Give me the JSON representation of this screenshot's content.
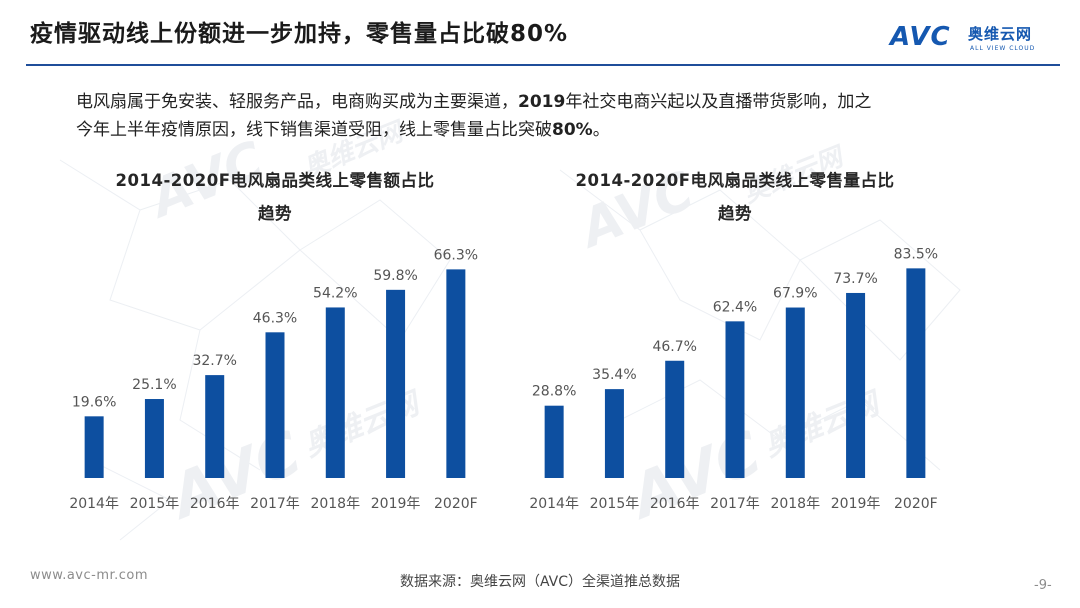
{
  "header": {
    "title": "疫情驱动线上份额进一步加持，零售量占比破80%",
    "logo": {
      "mark": "AVC",
      "name_cn": "奥维云网",
      "name_en": "ALL VIEW CLOUD"
    }
  },
  "summary": {
    "line1_a": "电风扇属于免安装、轻服务产品，电商购买成为主要渠道，",
    "line1_bold": "2019",
    "line1_b": "年社交电商兴起以及直播带货影响，加之",
    "line2_a": "今年上半年疫情原因，线下销售渠道受阻，线上零售量占比突破",
    "line2_bold": "80%",
    "line2_b": "。"
  },
  "watermark": {
    "mark": "AVC",
    "name_cn": "奥维云网",
    "name_en": "ALL VIEW CLOUD"
  },
  "chart_data": [
    {
      "type": "bar",
      "title_line1": "2014-2020F电风扇品类线上零售额占比",
      "title_line2": "趋势",
      "categories": [
        "2014年",
        "2015年",
        "2016年",
        "2017年",
        "2018年",
        "2019年",
        "2020F"
      ],
      "values": [
        19.6,
        25.1,
        32.7,
        46.3,
        54.2,
        59.8,
        66.3
      ],
      "value_labels": [
        "19.6%",
        "25.1%",
        "32.7%",
        "46.3%",
        "54.2%",
        "59.8%",
        "66.3%"
      ],
      "unit": "%",
      "ylim": [
        0,
        75
      ],
      "color": "#0d4fa0",
      "grid": false
    },
    {
      "type": "bar",
      "title_line1": "2014-2020F电风扇品类线上零售量占比",
      "title_line2": "趋势",
      "categories": [
        "2014年",
        "2015年",
        "2016年",
        "2017年",
        "2018年",
        "2019年",
        "2020F"
      ],
      "values": [
        28.8,
        35.4,
        46.7,
        62.4,
        67.9,
        73.7,
        83.5
      ],
      "value_labels": [
        "28.8%",
        "35.4%",
        "46.7%",
        "62.4%",
        "67.9%",
        "73.7%",
        "83.5%"
      ],
      "unit": "%",
      "ylim": [
        0,
        94
      ],
      "color": "#0d4fa0",
      "grid": false
    }
  ],
  "footer": {
    "site": "www.avc-mr.com",
    "source": "数据来源：奥维云网（AVC）全渠道推总数据",
    "page": "-9-"
  }
}
